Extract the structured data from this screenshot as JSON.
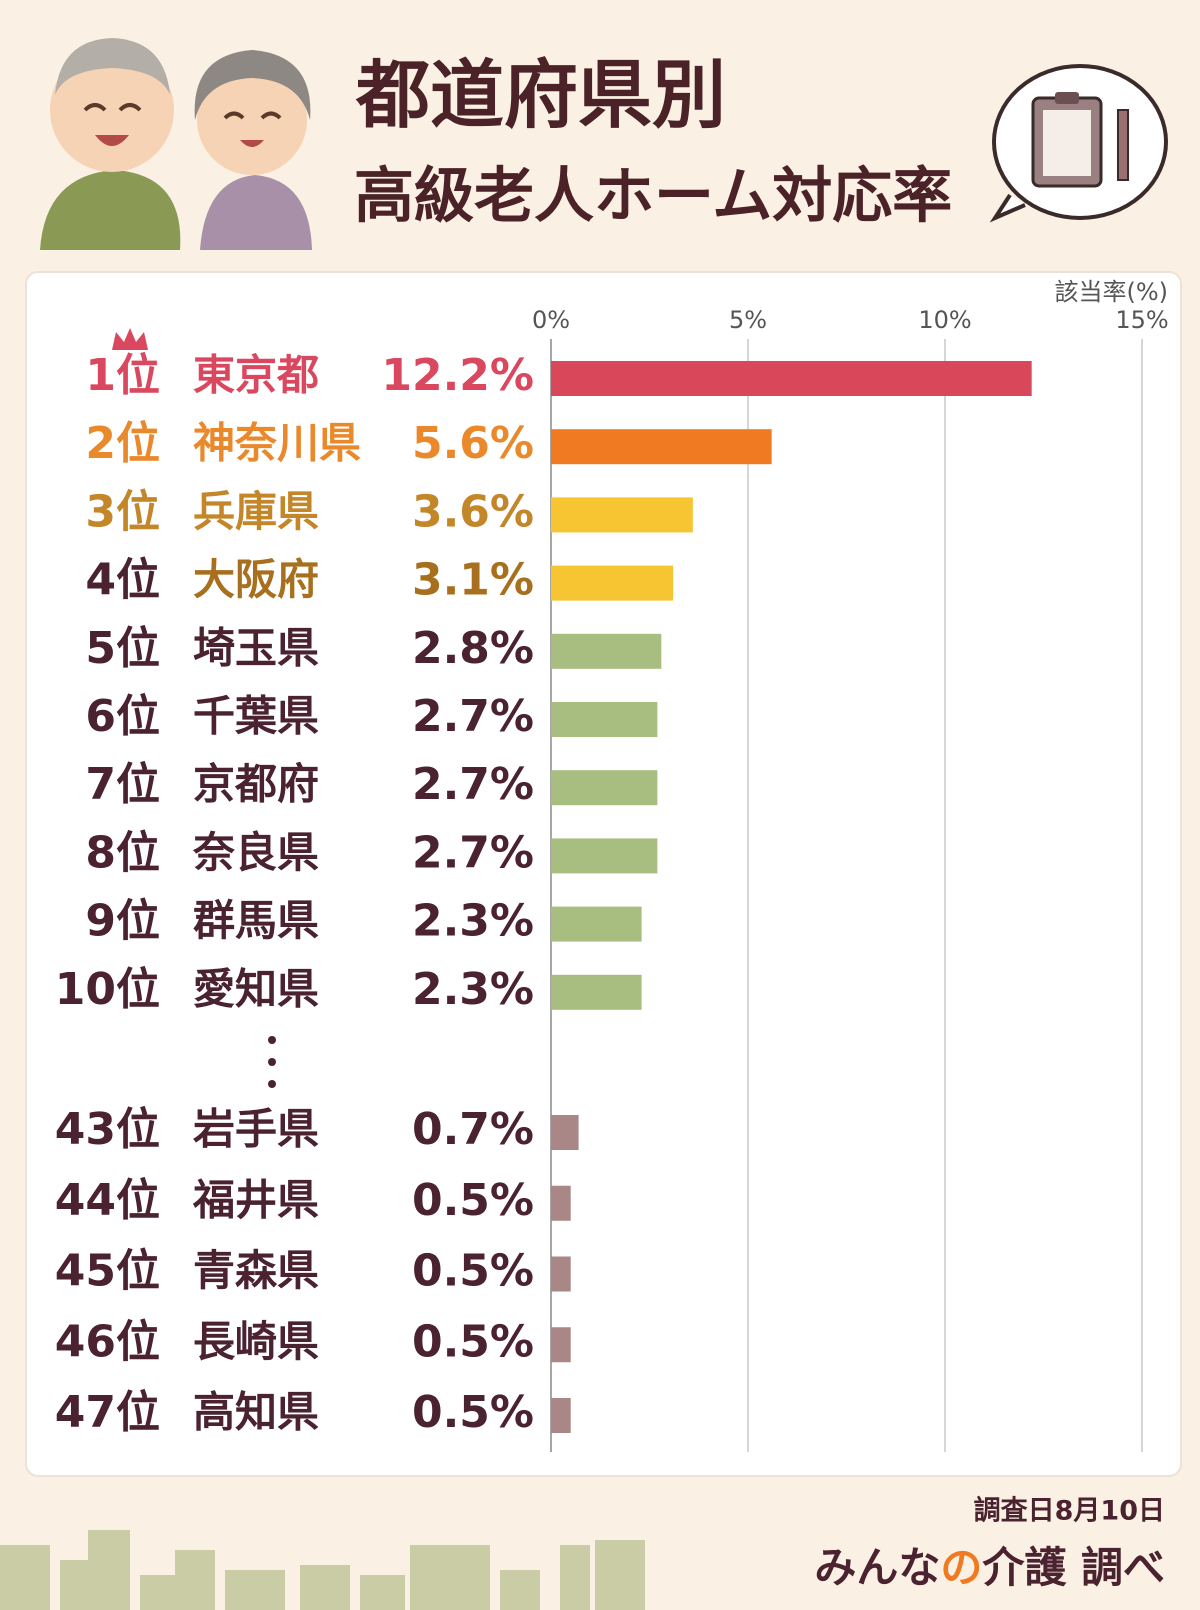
{
  "chart_data": {
    "type": "bar",
    "title": [
      "都道府県別",
      "高級老人ホーム対応率"
    ],
    "x_label": "該当率(%)",
    "ranks": [
      "1位",
      "2位",
      "3位",
      "4位",
      "5位",
      "6位",
      "7位",
      "8位",
      "9位",
      "10位",
      "43位",
      "44位",
      "45位",
      "46位",
      "47位"
    ],
    "categories": [
      "東京都",
      "神奈川県",
      "兵庫県",
      "大阪府",
      "埼玉県",
      "千葉県",
      "京都府",
      "奈良県",
      "群馬県",
      "愛知県",
      "岩手県",
      "福井県",
      "青森県",
      "長崎県",
      "高知県"
    ],
    "values": [
      12.2,
      5.6,
      3.6,
      3.1,
      2.8,
      2.7,
      2.7,
      2.7,
      2.3,
      2.3,
      0.7,
      0.5,
      0.5,
      0.5,
      0.5
    ],
    "value_labels": [
      "12.2%",
      "5.6%",
      "3.6%",
      "3.1%",
      "2.8%",
      "2.7%",
      "2.7%",
      "2.7%",
      "2.3%",
      "2.3%",
      "0.7%",
      "0.5%",
      "0.5%",
      "0.5%",
      "0.5%"
    ],
    "colors": [
      "#d9475a",
      "#f07a22",
      "#f7c531",
      "#f7c531",
      "#a8bd80",
      "#a8bd80",
      "#a8bd80",
      "#a8bd80",
      "#a8bd80",
      "#a8bd80",
      "#a88786",
      "#a88786",
      "#a88786",
      "#a88786",
      "#a88786"
    ],
    "label_colors": [
      "#d9485f",
      "#e9892b",
      "#c38628",
      "#a8701e",
      "#4a2230",
      "#4a2230",
      "#4a2230",
      "#4a2230",
      "#4a2230",
      "#4a2230",
      "#4a2230",
      "#4a2230",
      "#4a2230",
      "#4a2230",
      "#4a2230"
    ],
    "xlim": [
      0,
      15
    ],
    "xticks": [
      {
        "value": 0,
        "label": "0%"
      },
      {
        "value": 5,
        "label": "5%"
      },
      {
        "value": 10,
        "label": "10%"
      },
      {
        "value": 15,
        "label": "15%"
      }
    ],
    "grid": true,
    "footer": {
      "date": "調査日8月10日",
      "source_parts": [
        "みんな",
        "の",
        "介護 調べ"
      ]
    }
  }
}
